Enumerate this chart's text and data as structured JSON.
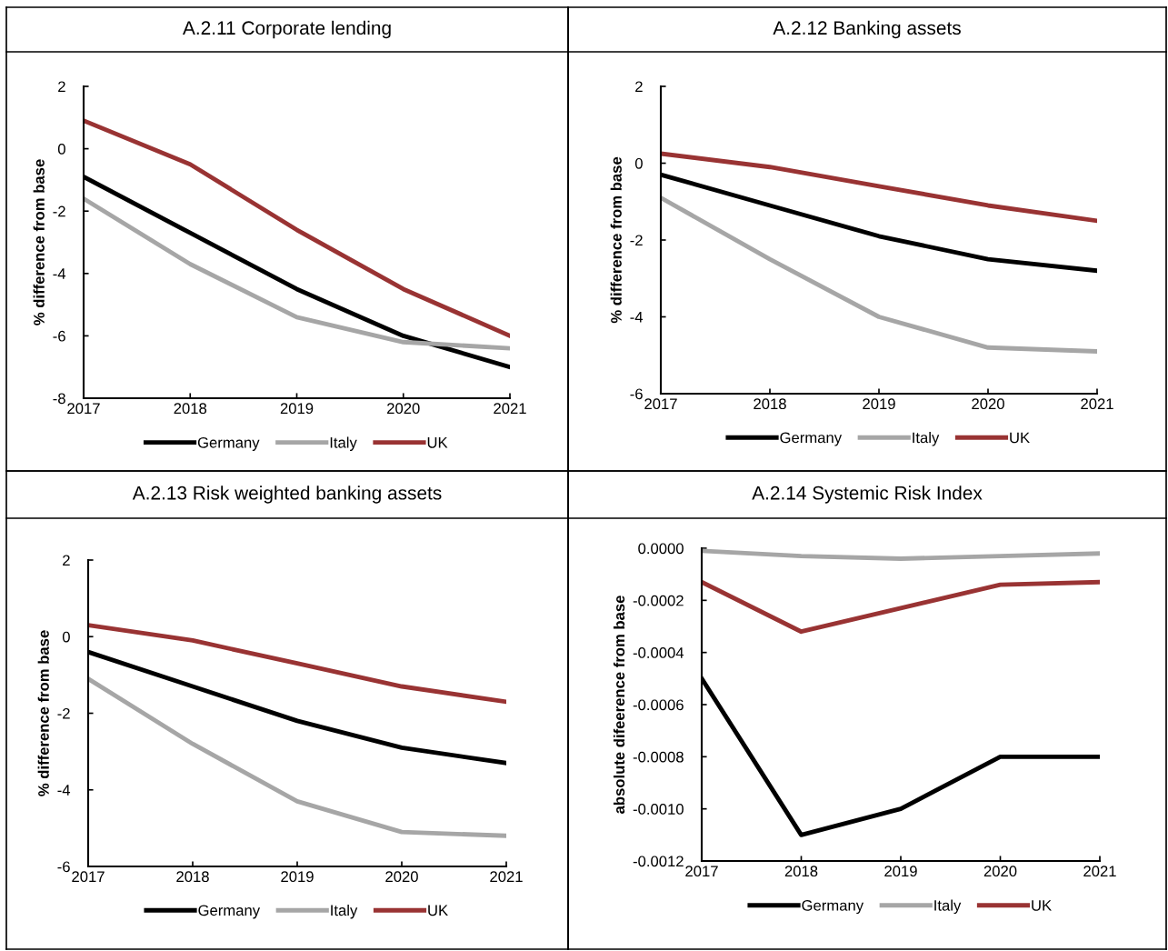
{
  "chart_data": [
    {
      "type": "line",
      "title": "A.2.11 Corporate lending",
      "ylabel": "% difference from base",
      "categories": [
        "2017",
        "2018",
        "2019",
        "2020",
        "2021"
      ],
      "ylim": [
        -8,
        2
      ],
      "yticks": [
        -8,
        -6,
        -4,
        -2,
        0,
        2
      ],
      "legend": "bottom",
      "series": [
        {
          "name": "Germany",
          "color": "#000000",
          "values": [
            -0.9,
            -2.7,
            -4.5,
            -6.0,
            -7.0
          ]
        },
        {
          "name": "Italy",
          "color": "#a6a6a6",
          "values": [
            -1.6,
            -3.7,
            -5.4,
            -6.2,
            -6.4
          ]
        },
        {
          "name": "UK",
          "color": "#993333",
          "values": [
            0.9,
            -0.5,
            -2.6,
            -4.5,
            -6.0
          ]
        }
      ]
    },
    {
      "type": "line",
      "title": "A.2.12 Banking assets",
      "ylabel": "% difference from base",
      "categories": [
        "2017",
        "2018",
        "2019",
        "2020",
        "2021"
      ],
      "ylim": [
        -6,
        2
      ],
      "yticks": [
        -6,
        -4,
        -2,
        0,
        2
      ],
      "legend": "bottom",
      "series": [
        {
          "name": "Germany",
          "color": "#000000",
          "values": [
            -0.3,
            -1.1,
            -1.9,
            -2.5,
            -2.8
          ]
        },
        {
          "name": "Italy",
          "color": "#a6a6a6",
          "values": [
            -0.9,
            -2.5,
            -4.0,
            -4.8,
            -4.9
          ]
        },
        {
          "name": "UK",
          "color": "#993333",
          "values": [
            0.25,
            -0.1,
            -0.6,
            -1.1,
            -1.5
          ]
        }
      ]
    },
    {
      "type": "line",
      "title": "A.2.13 Risk weighted banking assets",
      "ylabel": "% difference from base",
      "categories": [
        "2017",
        "2018",
        "2019",
        "2020",
        "2021"
      ],
      "ylim": [
        -6,
        2
      ],
      "yticks": [
        -6,
        -4,
        -2,
        0,
        2
      ],
      "legend": "bottom",
      "series": [
        {
          "name": "Germany",
          "color": "#000000",
          "values": [
            -0.4,
            -1.3,
            -2.2,
            -2.9,
            -3.3
          ]
        },
        {
          "name": "Italy",
          "color": "#a6a6a6",
          "values": [
            -1.1,
            -2.8,
            -4.3,
            -5.1,
            -5.2
          ]
        },
        {
          "name": "UK",
          "color": "#993333",
          "values": [
            0.3,
            -0.1,
            -0.7,
            -1.3,
            -1.7
          ]
        }
      ]
    },
    {
      "type": "line",
      "title": "A.2.14 Systemic Risk Index",
      "ylabel": "absolute difeerence from base",
      "categories": [
        "2017",
        "2018",
        "2019",
        "2020",
        "2021"
      ],
      "ylim": [
        -0.0012,
        0
      ],
      "yticks": [
        {
          "value": -0.0012,
          "label": "-0.0012"
        },
        {
          "value": -0.001,
          "label": "-0.0010"
        },
        {
          "value": -0.0008,
          "label": "-0.0008"
        },
        {
          "value": -0.0006,
          "label": "-0.0006"
        },
        {
          "value": -0.0004,
          "label": "-0.0004"
        },
        {
          "value": -0.0002,
          "label": "-0.0002"
        },
        {
          "value": 0,
          "label": "0.0000"
        }
      ],
      "legend": "bottom",
      "series": [
        {
          "name": "Germany",
          "color": "#000000",
          "values": [
            -0.0005,
            -0.0011,
            -0.001,
            -0.0008,
            -0.0008
          ]
        },
        {
          "name": "Italy",
          "color": "#a6a6a6",
          "values": [
            -1e-05,
            -3e-05,
            -4e-05,
            -3e-05,
            -2e-05
          ]
        },
        {
          "name": "UK",
          "color": "#993333",
          "values": [
            -0.00013,
            -0.00032,
            -0.00023,
            -0.00014,
            -0.00013
          ]
        }
      ]
    }
  ]
}
